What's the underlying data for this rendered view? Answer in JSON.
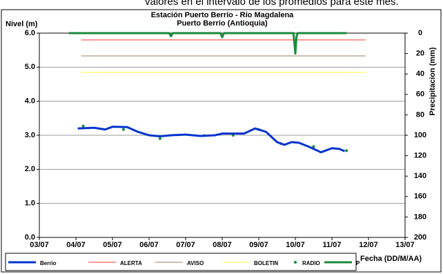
{
  "chart_data": {
    "type": "line",
    "note": "valores en el intervalo de los promedios para este mes.",
    "title": "Estación Puerto Berrío - Río Magdalena",
    "subtitle": "Puerto Berrio (Antioquia)",
    "y_label": "Nivel (m)",
    "y2_label": "Precipitacion (mm)",
    "x_label": "Fecha (DD/M/AA)",
    "xlim": [
      3,
      13
    ],
    "xticks": [
      {
        "value": 3,
        "label": "03/07"
      },
      {
        "value": 4,
        "label": "04/07"
      },
      {
        "value": 5,
        "label": "05/07"
      },
      {
        "value": 6,
        "label": "06/07"
      },
      {
        "value": 7,
        "label": "07/07"
      },
      {
        "value": 8,
        "label": "08/07"
      },
      {
        "value": 9,
        "label": "09/07"
      },
      {
        "value": 10,
        "label": "10/07"
      },
      {
        "value": 11,
        "label": "11/07"
      },
      {
        "value": 12,
        "label": "12/07"
      },
      {
        "value": 13,
        "label": "13/07"
      }
    ],
    "ylim": [
      0,
      6
    ],
    "yticks": [
      {
        "value": 0,
        "label": "0.0"
      },
      {
        "value": 1,
        "label": "1.0"
      },
      {
        "value": 2,
        "label": "2.0"
      },
      {
        "value": 3,
        "label": "3.0"
      },
      {
        "value": 4,
        "label": "4.0"
      },
      {
        "value": 5,
        "label": "5.0"
      },
      {
        "value": 6,
        "label": "6.0"
      }
    ],
    "y2lim": [
      0,
      200
    ],
    "y2_inverted": true,
    "y2ticks": [
      0,
      20,
      40,
      60,
      80,
      100,
      120,
      140,
      160,
      180,
      200
    ],
    "grid": true,
    "series": [
      {
        "name": "Berrio",
        "color": "#0033cc",
        "style": "line",
        "width": 3,
        "x": [
          4.05,
          4.5,
          4.8,
          5.0,
          5.4,
          5.7,
          6.0,
          6.3,
          6.6,
          7.0,
          7.4,
          7.8,
          8.0,
          8.6,
          8.9,
          9.2,
          9.5,
          9.7,
          9.9,
          10.1,
          10.4,
          10.7,
          11.0,
          11.2,
          11.35
        ],
        "values": [
          3.2,
          3.22,
          3.17,
          3.25,
          3.24,
          3.1,
          3.0,
          2.97,
          3.0,
          3.02,
          2.98,
          3.0,
          3.05,
          3.05,
          3.2,
          3.1,
          2.8,
          2.72,
          2.8,
          2.78,
          2.65,
          2.5,
          2.62,
          2.6,
          2.53
        ]
      },
      {
        "name": "ALERTA",
        "color": "#ff3333",
        "style": "line",
        "width": 1,
        "x": [
          4.15,
          11.92
        ],
        "values": [
          5.8,
          5.8
        ]
      },
      {
        "name": "AVISO",
        "color": "#a0785a",
        "style": "line",
        "width": 1,
        "x": [
          4.15,
          11.92
        ],
        "values": [
          5.33,
          5.33
        ]
      },
      {
        "name": "BOLETIN",
        "color": "#ffff33",
        "style": "line",
        "width": 1,
        "x": [
          4.15,
          11.92
        ],
        "values": [
          4.85,
          4.85
        ]
      },
      {
        "name": "RADIO",
        "color": "#1a8a3a",
        "style": "points",
        "x": [
          4.2,
          5.3,
          6.3,
          7.5,
          8.3,
          9.0,
          9.6,
          10.5,
          11.4
        ],
        "values": [
          3.27,
          3.17,
          2.9,
          2.99,
          3.0,
          3.17,
          2.76,
          2.67,
          2.55
        ]
      },
      {
        "name": "P",
        "color": "#1a8a3a",
        "style": "line",
        "width": 3,
        "axis": "y2",
        "x": [
          3.81,
          6.55,
          6.6,
          6.65,
          7.95,
          8.0,
          8.05,
          9.95,
          10.0,
          10.03,
          10.06,
          11.4
        ],
        "values": [
          0,
          0,
          3,
          0,
          0,
          4,
          0,
          0,
          20,
          4,
          0,
          0
        ]
      }
    ]
  }
}
